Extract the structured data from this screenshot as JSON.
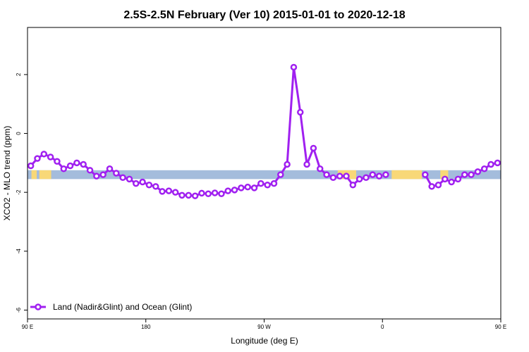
{
  "chart_data": {
    "type": "line",
    "title": "2.5S-2.5N February (Ver 10)   2015-01-01 to 2020-12-18",
    "xlabel": "Longitude (deg E)",
    "ylabel": "XCO2 - MLO trend (ppm)",
    "xlim": [
      90,
      450
    ],
    "ylim": [
      -6.3,
      3.6
    ],
    "x_ticks": [
      {
        "value": 90,
        "label": "90 E"
      },
      {
        "value": 180,
        "label": "180"
      },
      {
        "value": 270,
        "label": "90 W"
      },
      {
        "value": 360,
        "label": "0"
      },
      {
        "value": 450,
        "label": "90 E"
      },
      {
        "value": 540,
        "label": "180"
      }
    ],
    "y_ticks": [
      {
        "value": 2,
        "label": "2"
      },
      {
        "value": 0,
        "label": "0"
      },
      {
        "value": -2,
        "label": "-2"
      },
      {
        "value": -4,
        "label": "-4"
      },
      {
        "value": -6,
        "label": "-6"
      }
    ],
    "series": [
      {
        "name": "Land (Nadir&Glint) and Ocean (Glint)",
        "color": "#a020f0",
        "segments": [
          {
            "x": [
              92.5,
              97.5,
              102.5,
              107.5,
              112.5,
              117.5,
              122.5,
              127.5,
              132.5,
              137.5,
              142.5,
              147.5,
              152.5,
              157.5,
              162.5,
              167.5,
              172.5,
              177.5,
              182.5,
              187.5,
              192.5,
              197.5,
              202.5,
              207.5,
              212.5,
              217.5,
              222.5,
              227.5,
              232.5,
              237.5,
              242.5,
              247.5,
              252.5,
              257.5,
              262.5,
              267.5,
              272.5,
              277.5,
              282.5,
              287.5,
              292.5,
              297.5,
              302.5,
              307.5,
              312.5,
              317.5,
              322.5,
              327.5,
              332.5,
              337.5,
              342.5,
              347.5,
              352.5,
              357.5
            ],
            "y": [
              -1.1,
              -0.85,
              -0.7,
              -0.8,
              -0.95,
              -1.2,
              -1.1,
              -1.0,
              -1.05,
              -1.25,
              -1.45,
              -1.4,
              -1.2,
              -1.35,
              -1.5,
              -1.55,
              -1.7,
              -1.65,
              -1.75,
              -1.8,
              -1.97,
              -1.95,
              -2.0,
              -2.1,
              -2.1,
              -2.12,
              -2.03,
              -2.05,
              -2.02,
              -2.05,
              -1.95,
              -1.92,
              -1.85,
              -1.82,
              -1.85,
              -1.7,
              -1.75,
              -1.7,
              -1.4,
              -1.05,
              2.25,
              0.72,
              -1.05,
              -0.5,
              -1.2,
              -1.4,
              -1.5,
              -1.45,
              -1.45,
              -1.75,
              -1.55,
              -1.5,
              -1.4,
              -1.45
            ]
          },
          {
            "x": [
              362.5
            ],
            "y": [
              -1.4
            ]
          },
          {
            "x": [
              392.5,
              397.5,
              402.5,
              407.5,
              412.5,
              417.5,
              422.5,
              427.5,
              432.5,
              437.5,
              442.5,
              447.5,
              452.5,
              457.5,
              462.5,
              467.5,
              472.5,
              477.5,
              482.5,
              487.5,
              492.5,
              497.5,
              502.5,
              507.5,
              512.5,
              517.5,
              522.5,
              527.5,
              532.5,
              537.5
            ],
            "y": [
              -1.4,
              -1.8,
              -1.75,
              -1.55,
              -1.65,
              -1.55,
              -1.4,
              -1.4,
              -1.3,
              -1.2,
              -1.05,
              -1.0,
              -1.1,
              -0.85,
              -0.7,
              -0.8,
              -1.0,
              -1.2,
              -1.1,
              -1.0,
              -1.05,
              -1.25,
              -1.45,
              -1.4,
              -1.2,
              -1.35,
              -1.5,
              -1.55,
              -1.7,
              -1.65
            ]
          }
        ]
      }
    ],
    "surface_band": {
      "y_range": [
        -1.55,
        -1.25
      ],
      "ocean_color": "#a4bcdc",
      "land_color": "#f8d878",
      "land_ranges": [
        [
          93,
          97
        ],
        [
          99,
          108
        ],
        [
          326,
          340
        ],
        [
          367,
          390
        ],
        [
          404,
          410
        ],
        [
          465,
          467
        ],
        [
          473,
          477
        ]
      ]
    },
    "grid": false,
    "legend": {
      "position": "bottom-left"
    }
  }
}
